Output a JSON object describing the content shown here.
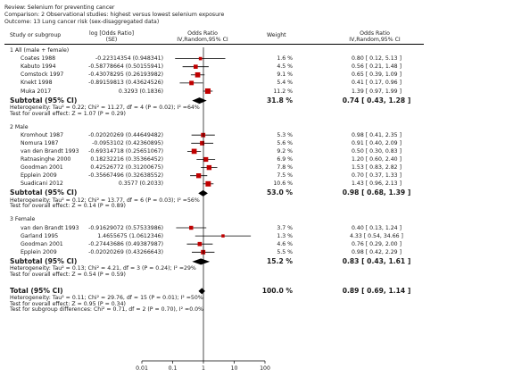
{
  "header": {
    "review": "Review:  Selenium for preventing cancer",
    "comparison": "Comparison:  2 Observational studies: highest versus lowest selenium exposure",
    "outcome": "Outcome:  13 Lung cancer risk (sex-disaggregated data)"
  },
  "columns": {
    "study": "Study or subgroup",
    "logor_line1": "log [Odds Ratio]",
    "logor_line2": "(SE)",
    "or_line1": "Odds Ratio",
    "or_line2": "IV,Random,95% CI",
    "weight": "Weight",
    "or2_line1": "Odds Ratio",
    "or2_line2": "IV,Random,95% CI"
  },
  "chart_data": {
    "type": "forest",
    "x_scale": "log",
    "xlim": [
      0.01,
      100
    ],
    "x_ticks": [
      "0.01",
      "0.1",
      "1",
      "10",
      "100"
    ],
    "x_tick_values": [
      0.01,
      0.1,
      1,
      10,
      100
    ],
    "marker_color": "#c00000",
    "groups": [
      {
        "title": "1 All (male + female)",
        "studies": [
          {
            "name": "Coates 1988",
            "logor": "-0.22314354 (0.948341)",
            "weight": "1.6 %",
            "ci_text": "0.80 [ 0.12, 5.13 ]",
            "or": 0.8,
            "lo": 0.12,
            "hi": 5.13,
            "w": 1.6
          },
          {
            "name": "Kabuto 1994",
            "logor": "-0.58778664 (0.50155941)",
            "weight": "4.5 %",
            "ci_text": "0.56 [ 0.21, 1.48 ]",
            "or": 0.56,
            "lo": 0.21,
            "hi": 1.48,
            "w": 4.5
          },
          {
            "name": "Comstock 1997",
            "logor": "-0.43078295 (0.26193982)",
            "weight": "9.1 %",
            "ci_text": "0.65 [ 0.39, 1.09 ]",
            "or": 0.65,
            "lo": 0.39,
            "hi": 1.09,
            "w": 9.1
          },
          {
            "name": "Knekt 1998",
            "logor": "-0.89159813 (0.43624526)",
            "weight": "5.4 %",
            "ci_text": "0.41 [ 0.17, 0.96 ]",
            "or": 0.41,
            "lo": 0.17,
            "hi": 0.96,
            "w": 5.4
          },
          {
            "name": "Muka 2017",
            "logor": "0.3293 (0.1836)",
            "weight": "11.2 %",
            "ci_text": "1.39 [ 0.97, 1.99 ]",
            "or": 1.39,
            "lo": 0.97,
            "hi": 1.99,
            "w": 11.2
          }
        ],
        "subtotal": {
          "label": "Subtotal (95% CI)",
          "weight": "31.8 %",
          "ci_text": "0.74 [ 0.43, 1.28 ]",
          "or": 0.74,
          "lo": 0.43,
          "hi": 1.28
        },
        "heterogeneity": "Heterogeneity: Tau² = 0.22; Chi² = 11.27, df = 4 (P = 0.02); I² =64%",
        "overall": "Test for overall effect: Z = 1.07 (P = 0.29)"
      },
      {
        "title": "2 Male",
        "studies": [
          {
            "name": "Kromhout 1987",
            "logor": "-0.02020269 (0.44649482)",
            "weight": "5.3 %",
            "ci_text": "0.98 [ 0.41, 2.35 ]",
            "or": 0.98,
            "lo": 0.41,
            "hi": 2.35,
            "w": 5.3
          },
          {
            "name": "Nomura 1987",
            "logor": "-0.0953102 (0.42360895)",
            "weight": "5.6 %",
            "ci_text": "0.91 [ 0.40, 2.09 ]",
            "or": 0.91,
            "lo": 0.4,
            "hi": 2.09,
            "w": 5.6
          },
          {
            "name": "van den Brandt 1993",
            "logor": "-0.69314718 (0.25651067)",
            "weight": "9.2 %",
            "ci_text": "0.50 [ 0.30, 0.83 ]",
            "or": 0.5,
            "lo": 0.3,
            "hi": 0.83,
            "w": 9.2
          },
          {
            "name": "Ratnasinghe 2000",
            "logor": "0.18232216 (0.35366452)",
            "weight": "6.9 %",
            "ci_text": "1.20 [ 0.60, 2.40 ]",
            "or": 1.2,
            "lo": 0.6,
            "hi": 2.4,
            "w": 6.9
          },
          {
            "name": "Goodman 2001",
            "logor": "0.42526772 (0.31200675)",
            "weight": "7.8 %",
            "ci_text": "1.53 [ 0.83, 2.82 ]",
            "or": 1.53,
            "lo": 0.83,
            "hi": 2.82,
            "w": 7.8
          },
          {
            "name": "Epplein 2009",
            "logor": "-0.35667496 (0.32638552)",
            "weight": "7.5 %",
            "ci_text": "0.70 [ 0.37, 1.33 ]",
            "or": 0.7,
            "lo": 0.37,
            "hi": 1.33,
            "w": 7.5
          },
          {
            "name": "Suadicani 2012",
            "logor": "0.3577 (0.2033)",
            "weight": "10.6 %",
            "ci_text": "1.43 [ 0.96, 2.13 ]",
            "or": 1.43,
            "lo": 0.96,
            "hi": 2.13,
            "w": 10.6
          }
        ],
        "subtotal": {
          "label": "Subtotal (95% CI)",
          "weight": "53.0 %",
          "ci_text": "0.98 [ 0.68, 1.39 ]",
          "or": 0.98,
          "lo": 0.68,
          "hi": 1.39
        },
        "heterogeneity": "Heterogeneity: Tau² = 0.12; Chi² = 13.77, df = 6 (P = 0.03); I² =56%",
        "overall": "Test for overall effect: Z = 0.14 (P = 0.89)"
      },
      {
        "title": "3 Female",
        "studies": [
          {
            "name": "van den Brandt 1993",
            "logor": "-0.91629072 (0.57533986)",
            "weight": "3.7 %",
            "ci_text": "0.40 [ 0.13, 1.24 ]",
            "or": 0.4,
            "lo": 0.13,
            "hi": 1.24,
            "w": 3.7
          },
          {
            "name": "Garland 1995",
            "logor": "1.4655675 (1.0612346)",
            "weight": "1.3 %",
            "ci_text": "4.33 [ 0.54, 34.66 ]",
            "or": 4.33,
            "lo": 0.54,
            "hi": 34.66,
            "w": 1.3
          },
          {
            "name": "Goodman 2001",
            "logor": "-0.27443686 (0.49387987)",
            "weight": "4.6 %",
            "ci_text": "0.76 [ 0.29, 2.00 ]",
            "or": 0.76,
            "lo": 0.29,
            "hi": 2.0,
            "w": 4.6
          },
          {
            "name": "Epplein 2009",
            "logor": "-0.02020269 (0.43266643)",
            "weight": "5.5 %",
            "ci_text": "0.98 [ 0.42, 2.29 ]",
            "or": 0.98,
            "lo": 0.42,
            "hi": 2.29,
            "w": 5.5
          }
        ],
        "subtotal": {
          "label": "Subtotal (95% CI)",
          "weight": "15.2 %",
          "ci_text": "0.83 [ 0.43, 1.61 ]",
          "or": 0.83,
          "lo": 0.43,
          "hi": 1.61
        },
        "heterogeneity": "Heterogeneity: Tau² = 0.13; Chi² = 4.21, df = 3 (P = 0.24); I² =29%",
        "overall": "Test for overall effect: Z = 0.54 (P = 0.59)"
      }
    ],
    "total": {
      "label": "Total (95% CI)",
      "weight": "100.0 %",
      "ci_text": "0.89 [ 0.69, 1.14 ]",
      "or": 0.89,
      "lo": 0.69,
      "hi": 1.14,
      "heterogeneity": "Heterogeneity: Tau² = 0.11; Chi² = 29.76, df = 15 (P = 0.01); I² =50%",
      "overall": "Test for overall effect: Z = 0.95 (P = 0.34)",
      "subgroup": "Test for subgroup differences: Chi² = 0.71, df = 2 (P = 0.70), I² =0.0%"
    }
  }
}
